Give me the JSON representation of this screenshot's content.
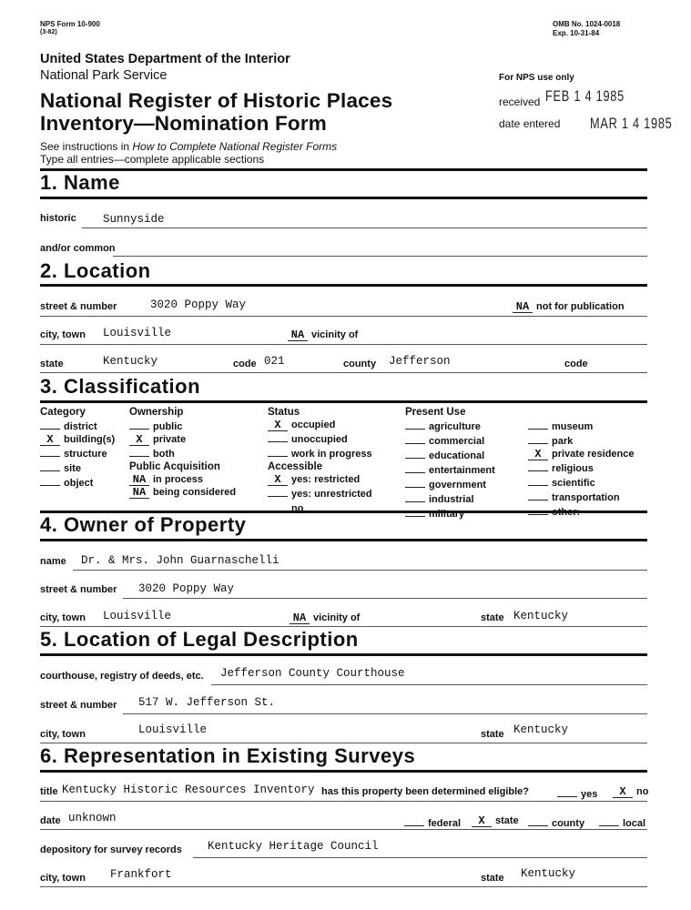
{
  "header": {
    "form_number": "NPS Form 10-900",
    "form_date": "(3-82)",
    "omb": "OMB No. 1024-0018",
    "exp": "Exp. 10-31-84",
    "department": "United States Department of the Interior",
    "service": "National Park Service",
    "title_line1": "National Register of Historic Places",
    "title_line2": "Inventory—Nomination Form",
    "instructions_prefix": "See instructions in ",
    "instructions_italic": "How to Complete National Register Forms",
    "type_all": "Type all entries—complete applicable sections",
    "nps_use": "For NPS use only",
    "received_label": "received",
    "received_value": "FEB 1 4 1985",
    "date_entered_label": "date entered",
    "date_entered_value": "MAR 1 4 1985"
  },
  "s1": {
    "title": "1.  Name",
    "historic_label": "historic",
    "historic_value": "Sunnyside",
    "common_label": "and/or common"
  },
  "s2": {
    "title": "2.  Location",
    "street_label": "street & number",
    "street_value": "3020 Poppy Way",
    "nfp_mark": "NA",
    "nfp_label": "not for publication",
    "city_label": "city, town",
    "city_value": "Louisville",
    "vicinity_mark": "NA",
    "vicinity_label": "vicinity of",
    "state_label": "state",
    "state_value": "Kentucky",
    "code_label": "code",
    "code_value": "021",
    "county_label": "county",
    "county_value": "Jefferson",
    "code2_label": "code"
  },
  "s3": {
    "title": "3.  Classification",
    "columns": [
      {
        "groups": [
          {
            "heading": "Category",
            "items": [
              {
                "mark": "",
                "label": "district"
              },
              {
                "mark": "X",
                "label": "building(s)"
              },
              {
                "mark": "",
                "label": "structure"
              },
              {
                "mark": "",
                "label": "site"
              },
              {
                "mark": "",
                "label": "object"
              }
            ]
          }
        ]
      },
      {
        "groups": [
          {
            "heading": "Ownership",
            "items": [
              {
                "mark": "",
                "label": "public"
              },
              {
                "mark": "X",
                "label": "private"
              },
              {
                "mark": "",
                "label": "both"
              }
            ]
          },
          {
            "heading": "Public Acquisition",
            "items": [
              {
                "mark": "NA",
                "label": "in process"
              },
              {
                "mark": "NA",
                "label": "being considered"
              }
            ]
          }
        ]
      },
      {
        "groups": [
          {
            "heading": "Status",
            "items": [
              {
                "mark": "X",
                "label": "occupied"
              },
              {
                "mark": "",
                "label": "unoccupied"
              },
              {
                "mark": "",
                "label": "work in progress"
              }
            ]
          },
          {
            "heading": "Accessible",
            "items": [
              {
                "mark": "X",
                "label": "yes: restricted"
              },
              {
                "mark": "",
                "label": "yes: unrestricted"
              },
              {
                "mark": "",
                "label": "no"
              }
            ]
          }
        ]
      },
      {
        "groups": [
          {
            "heading": "Present Use",
            "items": [
              {
                "mark": "",
                "label": "agriculture"
              },
              {
                "mark": "",
                "label": "commercial"
              },
              {
                "mark": "",
                "label": "educational"
              },
              {
                "mark": "",
                "label": "entertainment"
              },
              {
                "mark": "",
                "label": "government"
              },
              {
                "mark": "",
                "label": "industrial"
              },
              {
                "mark": "",
                "label": "military"
              }
            ]
          }
        ]
      },
      {
        "groups": [
          {
            "heading": "",
            "items": [
              {
                "mark": "",
                "label": "museum"
              },
              {
                "mark": "",
                "label": "park"
              },
              {
                "mark": "X",
                "label": "private residence"
              },
              {
                "mark": "",
                "label": "religious"
              },
              {
                "mark": "",
                "label": "scientific"
              },
              {
                "mark": "",
                "label": "transportation"
              },
              {
                "mark": "",
                "label": "other:"
              }
            ]
          }
        ]
      }
    ]
  },
  "s4": {
    "title": "4.  Owner of Property",
    "name_label": "name",
    "name_value": "Dr. & Mrs. John Guarnaschelli",
    "street_label": "street & number",
    "street_value": "3020 Poppy Way",
    "city_label": "city, town",
    "city_value": "Louisville",
    "vicinity_mark": "NA",
    "vicinity_label": "vicinity of",
    "state_label": "state",
    "state_value": "Kentucky"
  },
  "s5": {
    "title": "5.  Location of Legal Description",
    "courthouse_label": "courthouse, registry of deeds, etc.",
    "courthouse_value": "Jefferson County Courthouse",
    "street_label": "street & number",
    "street_value": "517 W. Jefferson St.",
    "city_label": "city, town",
    "city_value": "Louisville",
    "state_label": "state",
    "state_value": "Kentucky"
  },
  "s6": {
    "title": "6.  Representation in Existing Surveys",
    "title_label": "title",
    "title_value": "Kentucky Historic Resources Inventory",
    "eligible_label": "has this property been determined eligible?",
    "yes_mark": "",
    "yes_label": "yes",
    "no_mark": "X",
    "no_label": "no",
    "date_label": "date",
    "date_value": "unknown",
    "federal_mark": "",
    "federal_label": "federal",
    "state_mark": "X",
    "state_label": "state",
    "county_mark": "",
    "county_label": "county",
    "local_mark": "",
    "local_label": "local",
    "depository_label": "depository for survey records",
    "depository_value": "Kentucky Heritage Council",
    "city_label": "city, town",
    "city_value": "Frankfort",
    "state2_label": "state",
    "state2_value": "Kentucky"
  }
}
